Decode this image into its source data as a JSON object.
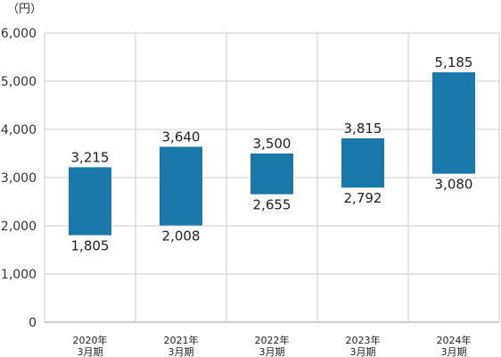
{
  "chart_data": {
    "type": "bar",
    "subtype": "floating-range",
    "unit": "（円）",
    "categories": [
      [
        "2020年",
        "3月期"
      ],
      [
        "2021年",
        "3月期"
      ],
      [
        "2022年",
        "3月期"
      ],
      [
        "2023年",
        "3月期"
      ],
      [
        "2024年",
        "3月期"
      ]
    ],
    "series": [
      {
        "low": 1805,
        "high": 3215,
        "low_label": "1,805",
        "high_label": "3,215"
      },
      {
        "low": 2008,
        "high": 3640,
        "low_label": "2,008",
        "high_label": "3,640"
      },
      {
        "low": 2655,
        "high": 3500,
        "low_label": "2,655",
        "high_label": "3,500"
      },
      {
        "low": 2792,
        "high": 3815,
        "low_label": "2,792",
        "high_label": "3,815"
      },
      {
        "low": 3080,
        "high": 5185,
        "low_label": "3,080",
        "high_label": "5,185"
      }
    ],
    "ylim": [
      0,
      6000
    ],
    "yticks": [
      0,
      1000,
      2000,
      3000,
      4000,
      5000,
      6000
    ],
    "ytick_labels": [
      "0",
      "1,000",
      "2,000",
      "3,000",
      "4,000",
      "5,000",
      "6,000"
    ],
    "grid": true,
    "bar_color": "#1a78aa",
    "grid_color": "#cccccc"
  }
}
